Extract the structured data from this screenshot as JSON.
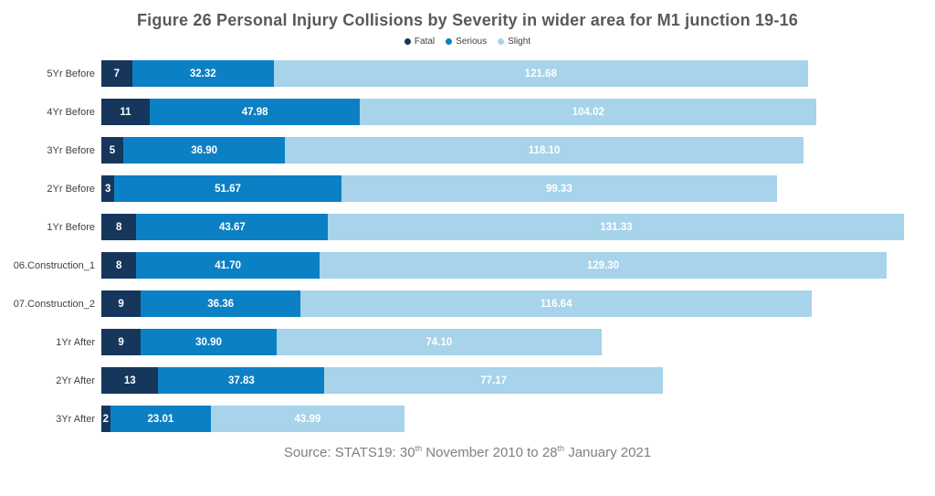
{
  "chart_data": {
    "type": "bar",
    "orientation": "horizontal",
    "stacked": true,
    "grid": false,
    "legend_position": "top",
    "title": "Figure 26 Personal Injury Collisions by Severity in wider area for M1 junction 19-16",
    "xlim": [
      0,
      190
    ],
    "categories": [
      "5Yr Before",
      "4Yr Before",
      "3Yr Before",
      "2Yr Before",
      "1Yr Before",
      "06.Construction_1",
      "07.Construction_2",
      "1Yr After",
      "2Yr After",
      "3Yr After"
    ],
    "series": [
      {
        "name": "Fatal",
        "color": "#16365C",
        "values": [
          7,
          11,
          5,
          3,
          8,
          8,
          9,
          9,
          13,
          2
        ],
        "labels": [
          "7",
          "11",
          "5",
          "3",
          "8",
          "8",
          "9",
          "9",
          "13",
          "2"
        ]
      },
      {
        "name": "Serious",
        "color": "#0C80C4",
        "values": [
          32.32,
          47.98,
          36.9,
          51.67,
          43.67,
          41.7,
          36.36,
          30.9,
          37.83,
          23.01
        ],
        "labels": [
          "32.32",
          "47.98",
          "36.90",
          "51.67",
          "43.67",
          "41.70",
          "36.36",
          "30.90",
          "37.83",
          "23.01"
        ]
      },
      {
        "name": "Slight",
        "color": "#A7D3EB",
        "values": [
          121.68,
          104.02,
          118.1,
          99.33,
          131.33,
          129.3,
          116.64,
          74.1,
          77.17,
          43.99
        ],
        "labels": [
          "121.68",
          "104.02",
          "118.10",
          "99.33",
          "131.33",
          "129.30",
          "116.64",
          "74.10",
          "77.17",
          "43.99"
        ]
      }
    ],
    "value_label_color": "#FFFFFF",
    "source_note": {
      "text": "Source: STATS19: 30th November 2010 to 28th January 2021",
      "parts": [
        {
          "text": "Source: STATS19: 30"
        },
        {
          "sup": "th"
        },
        {
          "text": " November 2010 to 28"
        },
        {
          "sup": "th"
        },
        {
          "text": " January 2021"
        }
      ]
    }
  },
  "colors": {
    "title": "#595959",
    "category_label": "#404040",
    "source": "#808080",
    "background": "#FFFFFF"
  }
}
